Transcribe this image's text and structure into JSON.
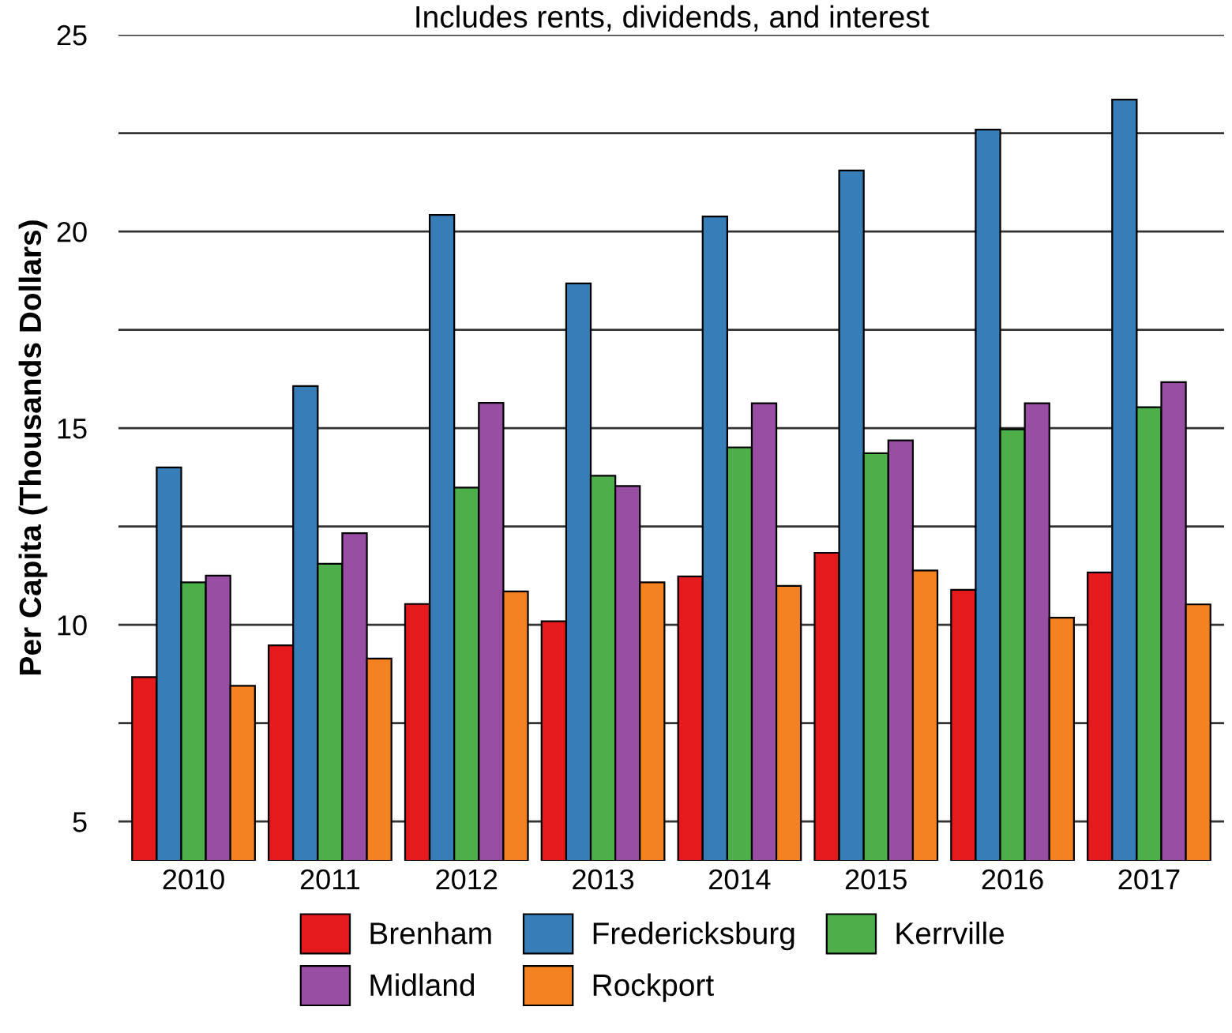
{
  "chart_data": {
    "type": "bar",
    "subtitle": "Includes rents, dividends, and interest",
    "ylabel": "Per Capita (Thousands Dollars)",
    "categories": [
      "2010",
      "2011",
      "2012",
      "2013",
      "2014",
      "2015",
      "2016",
      "2017"
    ],
    "series": [
      {
        "name": "Brenham",
        "color": "#e41a1c",
        "values": [
          8.67,
          9.48,
          10.53,
          10.09,
          11.23,
          11.83,
          10.89,
          11.33
        ]
      },
      {
        "name": "Fredericksburg",
        "color": "#377eb8",
        "values": [
          14.0,
          16.07,
          20.42,
          18.68,
          20.38,
          21.55,
          22.59,
          23.35
        ]
      },
      {
        "name": "Kerrville",
        "color": "#4daf4a",
        "values": [
          11.08,
          11.55,
          13.49,
          13.79,
          14.51,
          14.36,
          14.97,
          15.53
        ]
      },
      {
        "name": "Midland",
        "color": "#984ea3",
        "values": [
          11.25,
          12.33,
          15.64,
          13.53,
          15.63,
          14.69,
          15.63,
          16.17
        ]
      },
      {
        "name": "Rockport",
        "color": "#f58220",
        "values": [
          8.45,
          9.14,
          10.85,
          11.08,
          10.99,
          11.38,
          10.18,
          10.52
        ]
      }
    ],
    "ylim": [
      4,
      25
    ],
    "yticks": [
      5,
      {
        "value": 7.5,
        "label": null
      },
      10,
      {
        "value": 12.5,
        "label": null
      },
      15,
      {
        "value": 17.5,
        "label": null
      },
      20,
      {
        "value": 22.5,
        "label": null
      },
      25
    ],
    "grid": "y",
    "legend": "bottom"
  }
}
